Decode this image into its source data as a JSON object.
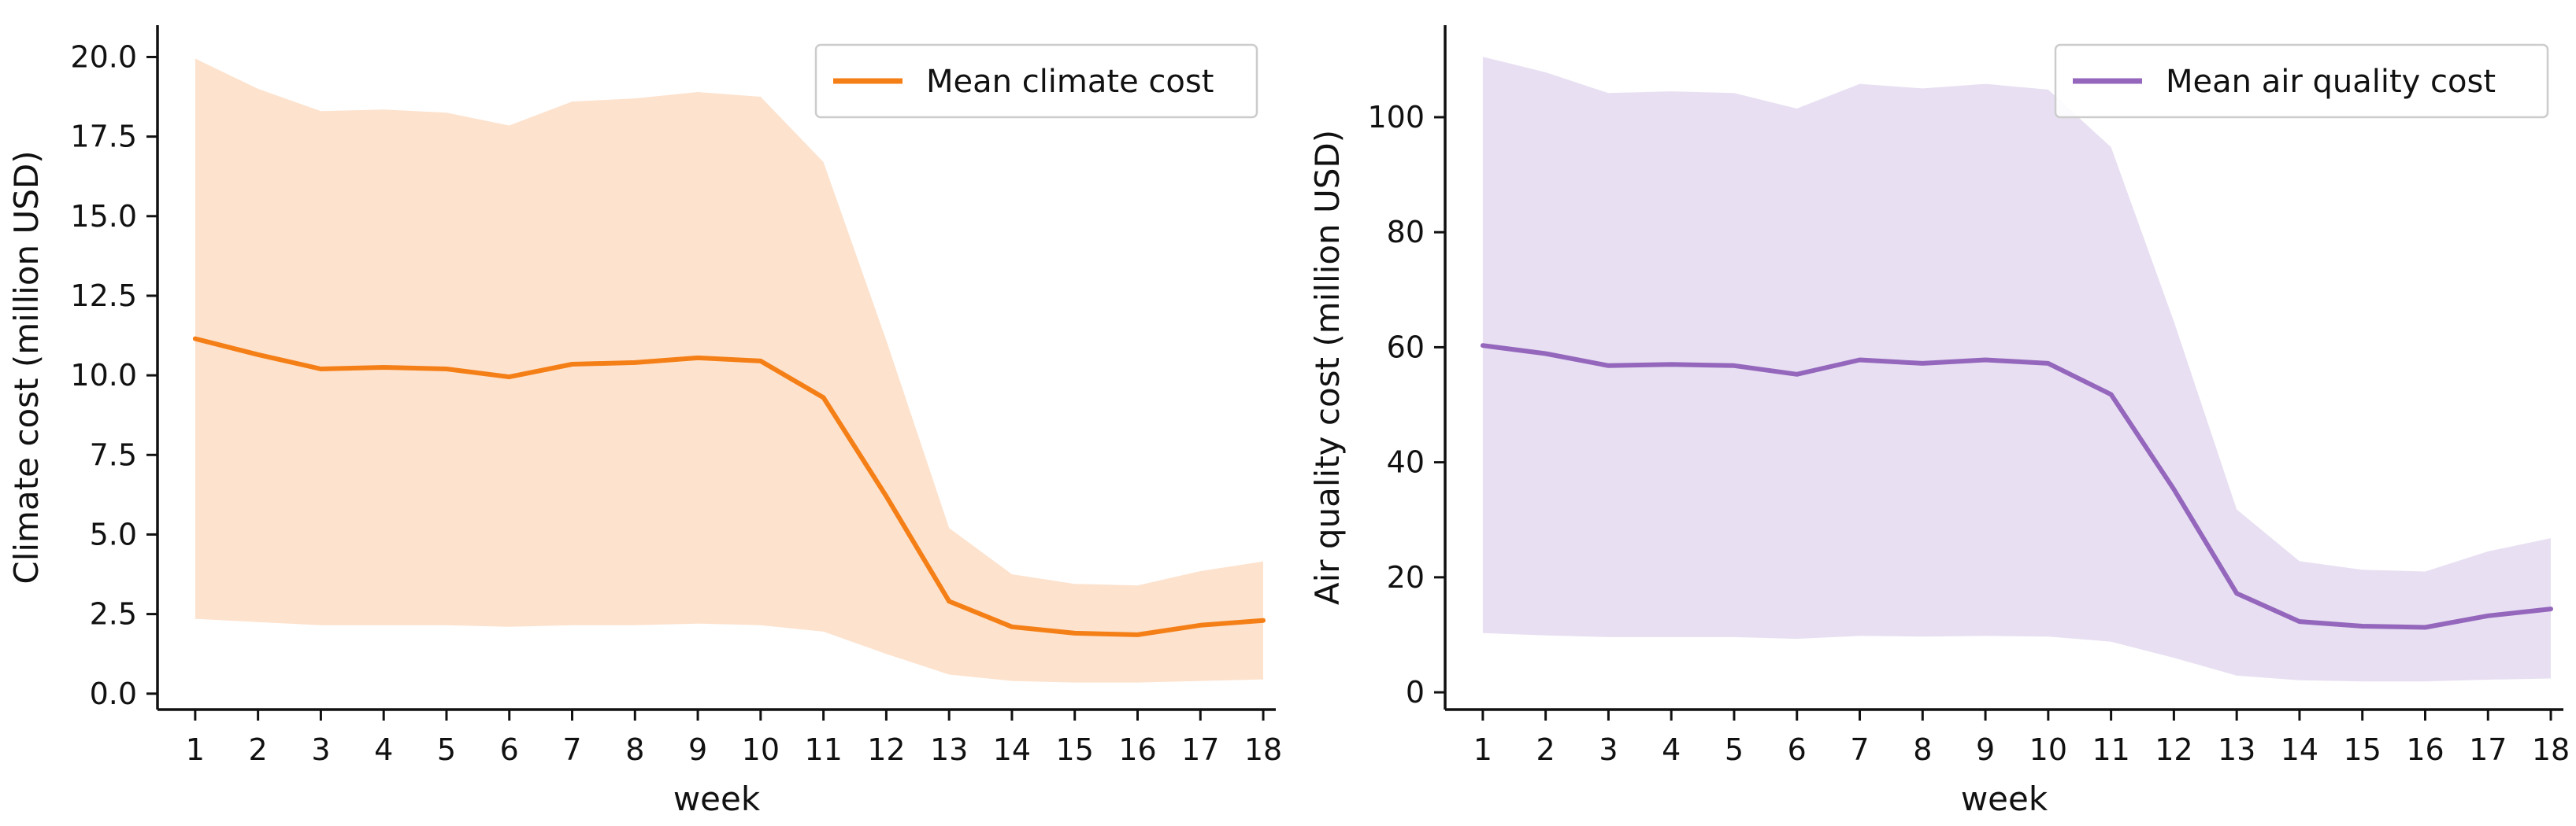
{
  "chart_data": [
    {
      "type": "line",
      "title": "",
      "xlabel": "week",
      "ylabel": "Climate cost (million USD)",
      "x": [
        1,
        2,
        3,
        4,
        5,
        6,
        7,
        8,
        9,
        10,
        11,
        12,
        13,
        14,
        15,
        16,
        17,
        18
      ],
      "x_tick_labels": [
        "1",
        "2",
        "3",
        "4",
        "5",
        "6",
        "7",
        "8",
        "9",
        "10",
        "11",
        "12",
        "13",
        "14",
        "15",
        "16",
        "17",
        "18"
      ],
      "xlim": [
        0.4,
        18.2
      ],
      "ylim": [
        -0.5,
        21.0
      ],
      "y_ticks": [
        0.0,
        2.5,
        5.0,
        7.5,
        10.0,
        12.5,
        15.0,
        17.5,
        20.0
      ],
      "y_tick_labels": [
        "0.0",
        "2.5",
        "5.0",
        "7.5",
        "10.0",
        "12.5",
        "15.0",
        "17.5",
        "20.0"
      ],
      "grid": false,
      "legend_position": "top-right",
      "series": [
        {
          "name": "Mean climate cost",
          "color": "#f57f17",
          "band_color": "#fde2cd",
          "values": [
            11.15,
            10.65,
            10.2,
            10.25,
            10.2,
            9.95,
            10.35,
            10.4,
            10.55,
            10.45,
            9.3,
            6.2,
            2.9,
            2.1,
            1.9,
            1.85,
            2.15,
            2.3
          ],
          "upper": [
            19.95,
            19.0,
            18.3,
            18.35,
            18.25,
            17.85,
            18.6,
            18.7,
            18.9,
            18.75,
            16.7,
            11.1,
            5.2,
            3.75,
            3.45,
            3.4,
            3.85,
            4.15
          ],
          "lower": [
            2.35,
            2.25,
            2.15,
            2.15,
            2.15,
            2.1,
            2.15,
            2.15,
            2.2,
            2.15,
            1.95,
            1.25,
            0.6,
            0.4,
            0.35,
            0.35,
            0.4,
            0.45
          ]
        }
      ]
    },
    {
      "type": "line",
      "title": "",
      "xlabel": "week",
      "ylabel": "Air quality cost (million USD)",
      "x": [
        1,
        2,
        3,
        4,
        5,
        6,
        7,
        8,
        9,
        10,
        11,
        12,
        13,
        14,
        15,
        16,
        17,
        18
      ],
      "x_tick_labels": [
        "1",
        "2",
        "3",
        "4",
        "5",
        "6",
        "7",
        "8",
        "9",
        "10",
        "11",
        "12",
        "13",
        "14",
        "15",
        "16",
        "17",
        "18"
      ],
      "xlim": [
        0.4,
        18.2
      ],
      "ylim": [
        -3,
        116
      ],
      "y_ticks": [
        0,
        20,
        40,
        60,
        80,
        100
      ],
      "y_tick_labels": [
        "0",
        "20",
        "40",
        "60",
        "80",
        "100"
      ],
      "grid": false,
      "legend_position": "top-right",
      "series": [
        {
          "name": "Mean air quality cost",
          "color": "#9467bd",
          "band_color": "#e8e0f2",
          "values": [
            60.3,
            58.9,
            56.8,
            57.0,
            56.8,
            55.3,
            57.8,
            57.2,
            57.8,
            57.2,
            51.8,
            35.3,
            17.2,
            12.3,
            11.5,
            11.3,
            13.3,
            14.5
          ],
          "upper": [
            110.5,
            107.8,
            104.2,
            104.5,
            104.2,
            101.5,
            105.8,
            105.0,
            105.8,
            104.8,
            94.8,
            64.5,
            31.8,
            22.8,
            21.3,
            21.0,
            24.5,
            26.8
          ],
          "lower": [
            10.3,
            9.9,
            9.6,
            9.6,
            9.6,
            9.3,
            9.8,
            9.7,
            9.8,
            9.7,
            8.8,
            6.0,
            2.9,
            2.1,
            1.9,
            1.9,
            2.2,
            2.4
          ]
        }
      ]
    }
  ]
}
